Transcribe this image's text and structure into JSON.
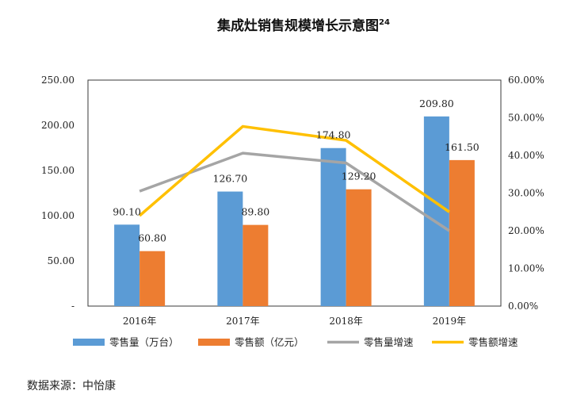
{
  "chart_data": {
    "type": "bar",
    "title": "集成灶销售规模增长示意图",
    "title_sup": "24",
    "categories": [
      "2016年",
      "2017年",
      "2018年",
      "2019年"
    ],
    "ylim": [
      0,
      250
    ],
    "y_ticks": [
      "-",
      "50.00",
      "100.00",
      "150.00",
      "200.00",
      "250.00"
    ],
    "y2lim": [
      0,
      0.6
    ],
    "y2_ticks": [
      "0.00%",
      "10.00%",
      "20.00%",
      "30.00%",
      "40.00%",
      "50.00%",
      "60.00%"
    ],
    "series": [
      {
        "name": "零售量（万台）",
        "kind": "bar",
        "axis": "left",
        "color": "#5B9BD5",
        "values": [
          90.1,
          126.7,
          174.8,
          209.8
        ],
        "labels": [
          "90.10",
          "126.70",
          "174.80",
          "209.80"
        ]
      },
      {
        "name": "零售额（亿元）",
        "kind": "bar",
        "axis": "left",
        "color": "#ED7D31",
        "values": [
          60.8,
          89.8,
          129.2,
          161.5
        ],
        "labels": [
          "60.80",
          "89.80",
          "129.20",
          "161.50"
        ]
      },
      {
        "name": "零售量增速",
        "kind": "line",
        "axis": "right",
        "color": "#A5A5A5",
        "values": [
          0.305,
          0.406,
          0.38,
          0.2
        ]
      },
      {
        "name": "零售额增速",
        "kind": "line",
        "axis": "right",
        "color": "#FFC000",
        "values": [
          0.24,
          0.477,
          0.44,
          0.25
        ]
      }
    ],
    "legend_position": "bottom",
    "grid": false
  },
  "source_text": "数据来源：中怡康"
}
